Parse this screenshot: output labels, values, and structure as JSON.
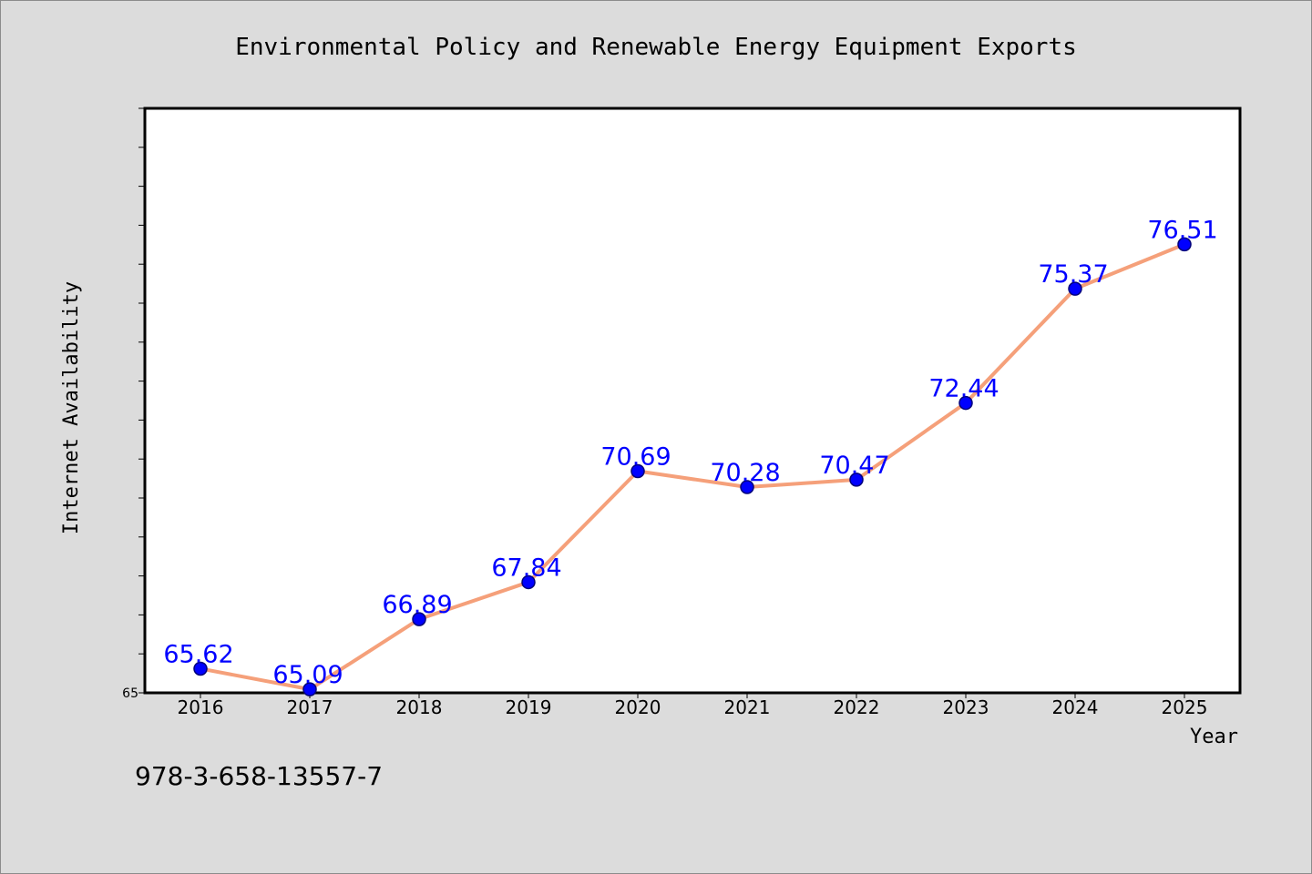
{
  "chart_data": {
    "type": "line",
    "title": "Environmental Policy and Renewable Energy Equipment Exports",
    "xlabel": "Year",
    "ylabel": "Internet Availability",
    "categories": [
      "2016",
      "2017",
      "2018",
      "2019",
      "2020",
      "2021",
      "2022",
      "2023",
      "2024",
      "2025"
    ],
    "values": [
      65.62,
      65.09,
      66.89,
      67.84,
      70.69,
      70.28,
      70.47,
      72.44,
      75.37,
      76.51
    ],
    "data_labels": [
      "65.62",
      "65.09",
      "66.89",
      "67.84",
      "70.69",
      "70.28",
      "70.47",
      "72.44",
      "75.37",
      "76.51"
    ],
    "ylim": [
      65,
      80
    ],
    "yticks_labeled": [
      "65"
    ],
    "grid": false,
    "legend": "none",
    "line_color": "#f5a07a",
    "marker_color": "#0000ff",
    "label_color": "#0000ff"
  },
  "annotation": {
    "text": "978-3-658-13557-7"
  }
}
